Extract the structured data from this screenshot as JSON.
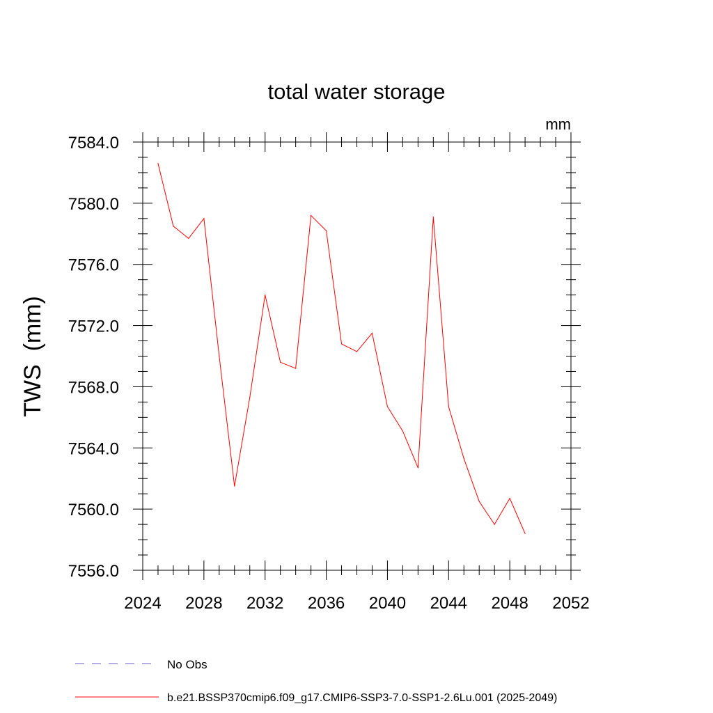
{
  "chart_data": {
    "type": "line",
    "title": "total water storage",
    "units": "mm",
    "ylabel": "TWS  (mm)",
    "xlabel": "",
    "xlim": [
      2024,
      2052
    ],
    "ylim": [
      7556.0,
      7584.0
    ],
    "x_ticks": [
      "2024",
      "2028",
      "2032",
      "2036",
      "2040",
      "2044",
      "2048",
      "2052"
    ],
    "y_ticks": [
      "7556.0",
      "7560.0",
      "7564.0",
      "7568.0",
      "7572.0",
      "7576.0",
      "7580.0",
      "7584.0"
    ],
    "grid": false,
    "legend_position": "bottom",
    "series": [
      {
        "name": "b.e21.BSSP370cmip6.f09_g17.CMIP6-SSP3-7.0-SSP1-2.6Lu.001 (2025-2049)",
        "color": "#ff0000",
        "style": "solid",
        "x": [
          2025,
          2026,
          2027,
          2028,
          2029,
          2030,
          2031,
          2032,
          2033,
          2034,
          2035,
          2036,
          2037,
          2038,
          2039,
          2040,
          2041,
          2042,
          2043,
          2044,
          2045,
          2046,
          2047,
          2048,
          2049
        ],
        "y": [
          7582.6,
          7578.5,
          7577.7,
          7579.0,
          7570.0,
          7561.5,
          7567.3,
          7574.0,
          7569.6,
          7569.2,
          7579.2,
          7578.2,
          7570.8,
          7570.3,
          7571.5,
          7566.7,
          7565.1,
          7562.7,
          7579.1,
          7566.7,
          7563.3,
          7560.5,
          7559.0,
          7560.7,
          7558.4
        ]
      }
    ]
  },
  "legend": [
    {
      "label": "No Obs",
      "color": "#6a5acd",
      "style": "dashed"
    },
    {
      "label": "b.e21.BSSP370cmip6.f09_g17.CMIP6-SSP3-7.0-SSP1-2.6Lu.001 (2025-2049)",
      "color": "#ff0000",
      "style": "solid"
    }
  ]
}
